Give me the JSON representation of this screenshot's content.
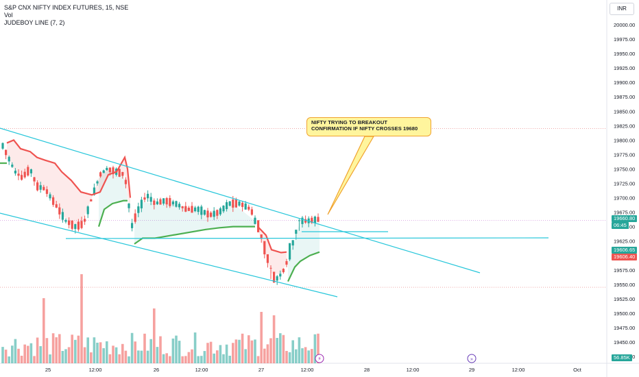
{
  "legend": {
    "symbol": "S&P CNX NIFTY INDEX FUTURES, 15, NSE",
    "volume": "Vol",
    "indicator": "JUDEBOY LINE (7, 2)"
  },
  "currency": "INR",
  "annotation": {
    "line1": "NIFTY TRYING TO BREAKOUT",
    "line2": "CONFIRMATION IF NIFTY CROSSES 19680"
  },
  "price_tags": {
    "last_price": "19660.80",
    "countdown": "06:45",
    "support_upper": "19606.65",
    "support_lower": "19606.40",
    "volume": "56.85K"
  },
  "colors": {
    "up": "#26a69a",
    "down": "#ef5350",
    "channel": "#26c6da",
    "support_line": "#4caf50",
    "resistance_line": "#ef5350",
    "callout_border": "#f0a22e"
  },
  "icons": {
    "lightning": "lightning-icon",
    "forward": "fast-forward-icon"
  },
  "chart_data": {
    "type": "candlestick",
    "y_axis": {
      "range": [
        19425,
        20025
      ],
      "ticks": [
        "20000.00",
        "19975.00",
        "19950.00",
        "19925.00",
        "19900.00",
        "19875.00",
        "19850.00",
        "19825.00",
        "19800.00",
        "19775.00",
        "19750.00",
        "19725.00",
        "19700.00",
        "19675.00",
        "19650.00",
        "19625.00",
        "19600.00",
        "19575.00",
        "19550.00",
        "19525.00",
        "19500.00",
        "19475.00",
        "19450.00",
        "19425.00"
      ]
    },
    "x_axis": {
      "ticks": [
        "25",
        "12:00",
        "26",
        "12:00",
        "27",
        "12:00",
        "28",
        "12:00",
        "29",
        "12:00",
        "Oct"
      ]
    },
    "horizontal_levels": [
      19820,
      19545
    ],
    "last_price": 19660.8
  }
}
